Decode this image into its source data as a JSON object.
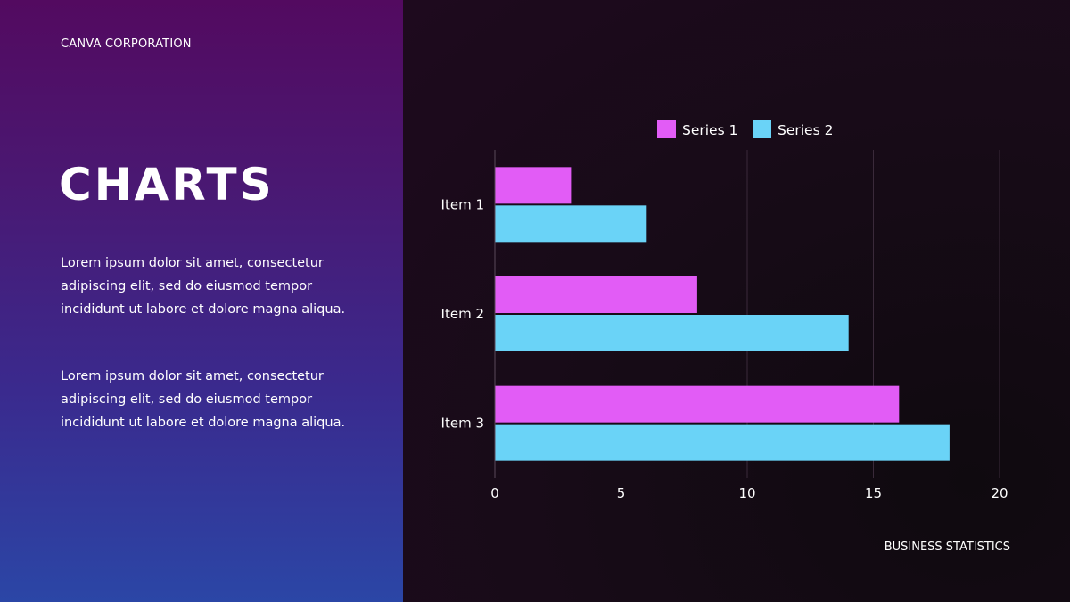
{
  "header": {
    "company": "CANVA CORPORATION"
  },
  "main": {
    "title": "CHARTS",
    "paragraphs": [
      "Lorem ipsum dolor sit amet, consectetur adipiscing elit, sed do eiusmod tempor incididunt ut labore et dolore magna aliqua.",
      "Lorem ipsum dolor sit amet, consectetur adipiscing elit, sed do eiusmod tempor incididunt ut labore et dolore magna aliqua."
    ]
  },
  "footer": {
    "label": "BUSINESS STATISTICS"
  },
  "colors": {
    "series_1": "#e25cf6",
    "series_2": "#6ad3f7",
    "gridline": "#3a2a3a",
    "axis": "#5a4a5a"
  },
  "chart_data": {
    "type": "bar",
    "orientation": "horizontal",
    "categories": [
      "Item 1",
      "Item 2",
      "Item 3"
    ],
    "series": [
      {
        "name": "Series 1",
        "values": [
          3,
          8,
          16
        ]
      },
      {
        "name": "Series 2",
        "values": [
          6,
          14,
          18
        ]
      }
    ],
    "xlim": [
      0,
      20
    ],
    "x_ticks": [
      0,
      5,
      10,
      15,
      20
    ],
    "grid": "vertical",
    "legend": "top-center",
    "title": "",
    "xlabel": "",
    "ylabel": ""
  }
}
